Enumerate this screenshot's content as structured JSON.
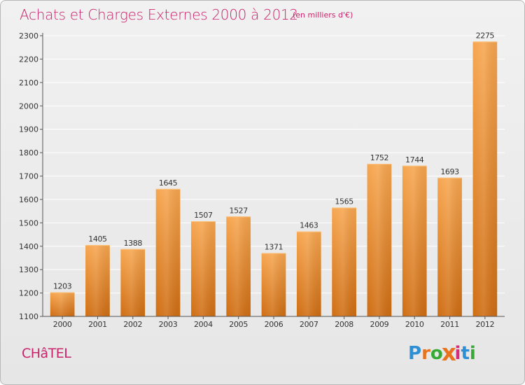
{
  "title": "Achats et Charges Externes 2000 à 2012",
  "unit": "(en milliers d'€)",
  "place": "CHâTEL",
  "logo": {
    "letters": [
      "P",
      "r",
      "o",
      "x",
      "i",
      "t",
      "i"
    ],
    "colors": [
      "#2d8fd5",
      "#e8731f",
      "#37a935",
      "#e8731f",
      "#d62a7a",
      "#2d8fd5",
      "#37a935"
    ]
  },
  "colors": {
    "accent": "#c8236b",
    "bar_top": "#f7a64f",
    "bar_bottom": "#cf6d12",
    "grid": "#ffffff",
    "axis": "#555555"
  },
  "chart_data": {
    "type": "bar",
    "title": "Achats et Charges Externes 2000 à 2012",
    "subtitle": "(en milliers d'€)",
    "xlabel": "",
    "ylabel": "",
    "categories": [
      "2000",
      "2001",
      "2002",
      "2003",
      "2004",
      "2005",
      "2006",
      "2007",
      "2008",
      "2009",
      "2010",
      "2011",
      "2012"
    ],
    "values": [
      1203,
      1405,
      1388,
      1645,
      1507,
      1527,
      1371,
      1463,
      1565,
      1752,
      1744,
      1693,
      2275
    ],
    "data_labels": [
      "1203",
      "1405",
      "1388",
      "1645",
      "1507",
      "1527",
      "1371",
      "1463",
      "1565",
      "1752",
      "1744",
      "1693",
      "2275"
    ],
    "ylim": [
      1100,
      2300
    ],
    "yticks": [
      1100,
      1200,
      1300,
      1400,
      1500,
      1600,
      1700,
      1800,
      1900,
      2000,
      2100,
      2200,
      2300
    ],
    "grid": true,
    "legend": "none"
  }
}
